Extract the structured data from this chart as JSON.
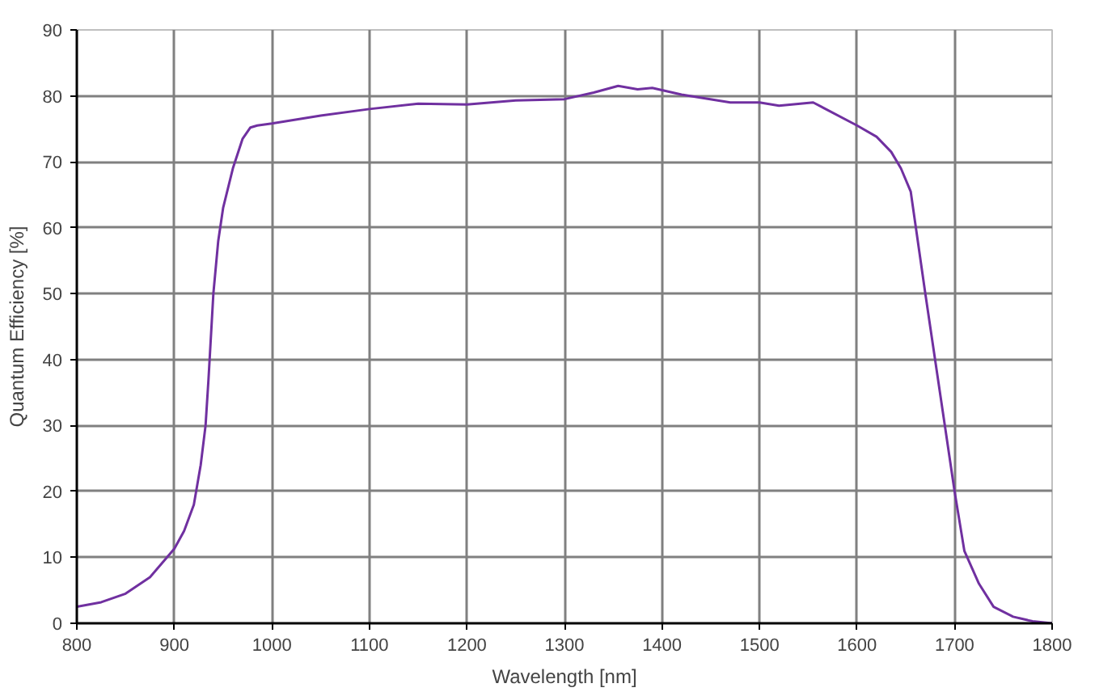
{
  "chart_data": {
    "type": "line",
    "xlabel": "Wavelength [nm]",
    "ylabel": "Quantum Efficiency [%]",
    "xlim": [
      800,
      1800
    ],
    "xticks": [
      800,
      900,
      1000,
      1100,
      1200,
      1300,
      1400,
      1500,
      1600,
      1700,
      1800
    ],
    "ylim": [
      0,
      90
    ],
    "yticks": [
      0,
      10,
      20,
      30,
      40,
      50,
      60,
      70,
      80,
      90
    ],
    "grid": true,
    "line_style": "solid",
    "series": [
      {
        "color": "#7030a0",
        "x": [
          800,
          825,
          850,
          875,
          900,
          910,
          920,
          927,
          932,
          935,
          940,
          945,
          950,
          960,
          970,
          978,
          985,
          1000,
          1050,
          1100,
          1150,
          1200,
          1250,
          1300,
          1330,
          1355,
          1375,
          1390,
          1420,
          1470,
          1500,
          1520,
          1555,
          1600,
          1620,
          1635,
          1645,
          1655,
          1670,
          1690,
          1700,
          1710,
          1725,
          1740,
          1760,
          1780,
          1800
        ],
        "values": [
          2.5,
          3.2,
          4.5,
          7,
          11.3,
          14,
          18,
          24,
          30,
          37,
          50,
          58,
          63,
          69,
          73.5,
          75.2,
          75.5,
          75.8,
          77,
          78,
          78.8,
          78.7,
          79.3,
          79.5,
          80.5,
          81.5,
          81,
          81.2,
          80.2,
          79,
          79,
          78.5,
          79,
          75.5,
          73.8,
          71.5,
          69,
          65.5,
          50,
          30,
          20,
          11,
          6,
          2.5,
          1,
          0.3,
          0
        ]
      }
    ]
  }
}
